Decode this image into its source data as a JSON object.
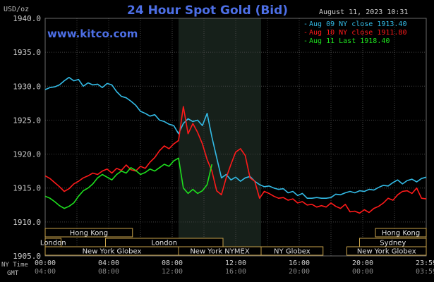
{
  "chart_data": {
    "type": "line",
    "title": "24 Hour Spot Gold (Bid)",
    "watermark": "www.kitco.com",
    "ylabel": "USD/oz",
    "timestamp": "August 11, 2023 10:31",
    "ylim": [
      1905,
      1940
    ],
    "xlim": [
      0,
      24
    ],
    "y_ticks": [
      "1940.0",
      "1935.0",
      "1930.0",
      "1925.0",
      "1920.0",
      "1915.0",
      "1910.0",
      "1905.0"
    ],
    "x_tick_values": [
      0,
      4,
      8,
      12,
      16,
      20,
      24
    ],
    "x_ticks_ny": [
      "00:00",
      "04:00",
      "08:00",
      "12:00",
      "16:00",
      "20:00",
      "23:59"
    ],
    "x_ticks_gmt": [
      "04:00",
      "08:00",
      "12:00",
      "16:00",
      "20:00",
      "00:00",
      "03:59"
    ],
    "row_label_ny": "NY Time",
    "row_label_gmt": "GMT",
    "grid": true,
    "legend_placement": "top-right",
    "highlight_range": [
      8.4,
      13.6
    ],
    "series": [
      {
        "name": "Aug 09 NY close 1913.40",
        "color": "#33bbe6",
        "x": [
          0,
          0.3,
          0.6,
          0.9,
          1.2,
          1.5,
          1.8,
          2.1,
          2.4,
          2.7,
          3.0,
          3.3,
          3.6,
          3.9,
          4.2,
          4.5,
          4.8,
          5.1,
          5.4,
          5.7,
          6.0,
          6.3,
          6.6,
          6.9,
          7.2,
          7.5,
          7.8,
          8.1,
          8.4,
          8.7,
          9.0,
          9.3,
          9.6,
          9.9,
          10.2,
          10.5,
          10.8,
          11.1,
          11.4,
          11.7,
          12.0,
          12.3,
          12.6,
          12.9,
          13.2,
          13.5,
          13.8,
          14.1,
          14.4,
          14.7,
          15.0,
          15.3,
          15.6,
          15.9,
          16.2,
          16.5,
          16.8,
          17.1,
          17.4,
          17.7,
          18.0,
          18.3,
          18.6,
          18.9,
          19.2,
          19.5,
          19.8,
          20.1,
          20.4,
          20.7,
          21.0,
          21.3,
          21.6,
          21.9,
          22.2,
          22.5,
          22.8,
          23.1,
          23.4,
          23.7,
          24.0
        ],
        "values": [
          1929.5,
          1929.8,
          1929.9,
          1930.2,
          1930.8,
          1931.3,
          1930.8,
          1931.0,
          1930.0,
          1930.5,
          1930.2,
          1930.3,
          1929.8,
          1930.4,
          1930.2,
          1929.2,
          1928.5,
          1928.3,
          1927.8,
          1927.2,
          1926.3,
          1926.0,
          1925.6,
          1925.8,
          1925.0,
          1924.8,
          1924.4,
          1924.2,
          1923.0,
          1924.5,
          1925.2,
          1924.8,
          1925.0,
          1924.2,
          1926.0,
          1922.5,
          1919.5,
          1916.5,
          1917.0,
          1916.2,
          1916.6,
          1916.0,
          1916.5,
          1916.7,
          1916.0,
          1915.5,
          1915.2,
          1915.3,
          1915.0,
          1914.8,
          1914.9,
          1914.3,
          1914.5,
          1913.9,
          1914.2,
          1913.5,
          1913.5,
          1913.6,
          1913.5,
          1913.5,
          1913.6,
          1914.1,
          1914.0,
          1914.3,
          1914.5,
          1914.3,
          1914.6,
          1914.5,
          1914.8,
          1914.7,
          1915.1,
          1915.4,
          1915.3,
          1915.8,
          1916.2,
          1915.6,
          1916.1,
          1916.3,
          1915.9,
          1916.4,
          1916.6
        ]
      },
      {
        "name": "Aug 10 NY close 1911.80",
        "color": "#ff1a1a",
        "x": [
          0,
          0.3,
          0.6,
          0.9,
          1.2,
          1.5,
          1.8,
          2.1,
          2.4,
          2.7,
          3.0,
          3.3,
          3.6,
          3.9,
          4.2,
          4.5,
          4.8,
          5.1,
          5.4,
          5.7,
          6.0,
          6.3,
          6.6,
          6.9,
          7.2,
          7.5,
          7.8,
          8.1,
          8.4,
          8.7,
          9.0,
          9.3,
          9.6,
          9.9,
          10.2,
          10.5,
          10.8,
          11.1,
          11.4,
          11.7,
          12.0,
          12.3,
          12.6,
          12.9,
          13.2,
          13.5,
          13.8,
          14.1,
          14.4,
          14.7,
          15.0,
          15.3,
          15.6,
          15.9,
          16.2,
          16.5,
          16.8,
          17.1,
          17.4,
          17.7,
          18.0,
          18.3,
          18.6,
          18.9,
          19.2,
          19.5,
          19.8,
          20.1,
          20.4,
          20.7,
          21.0,
          21.3,
          21.6,
          21.9,
          22.2,
          22.5,
          22.8,
          23.1,
          23.4,
          23.7,
          24.0
        ],
        "values": [
          1916.8,
          1916.4,
          1915.8,
          1915.2,
          1914.5,
          1914.9,
          1915.6,
          1916.0,
          1916.5,
          1916.8,
          1917.2,
          1917.0,
          1917.5,
          1917.8,
          1917.2,
          1917.9,
          1917.6,
          1918.4,
          1917.7,
          1917.5,
          1918.2,
          1917.9,
          1918.8,
          1919.5,
          1920.5,
          1921.2,
          1920.8,
          1921.5,
          1922.0,
          1927.0,
          1923.0,
          1924.5,
          1923.2,
          1921.5,
          1919.2,
          1917.5,
          1914.6,
          1914.0,
          1916.5,
          1918.5,
          1920.3,
          1920.8,
          1919.8,
          1916.5,
          1916.0,
          1913.5,
          1914.5,
          1914.2,
          1913.8,
          1913.5,
          1913.6,
          1913.2,
          1913.4,
          1912.8,
          1913.0,
          1912.5,
          1912.6,
          1912.2,
          1912.4,
          1912.2,
          1912.8,
          1912.3,
          1912.0,
          1912.6,
          1911.5,
          1911.6,
          1911.3,
          1911.8,
          1911.4,
          1912.0,
          1912.3,
          1912.8,
          1913.5,
          1913.2,
          1914.0,
          1914.5,
          1914.6,
          1914.2,
          1915.0,
          1913.5,
          1913.4
        ]
      },
      {
        "name": "Aug 11 Last 1918.40",
        "color": "#1ee01e",
        "x": [
          0,
          0.3,
          0.6,
          0.9,
          1.2,
          1.5,
          1.8,
          2.1,
          2.4,
          2.7,
          3.0,
          3.3,
          3.6,
          3.9,
          4.2,
          4.5,
          4.8,
          5.1,
          5.4,
          5.7,
          6.0,
          6.3,
          6.6,
          6.9,
          7.2,
          7.5,
          7.8,
          8.1,
          8.4,
          8.7,
          9.0,
          9.3,
          9.6,
          9.9,
          10.2,
          10.5
        ],
        "values": [
          1913.8,
          1913.5,
          1913.0,
          1912.4,
          1912.0,
          1912.3,
          1912.8,
          1913.8,
          1914.6,
          1915.0,
          1915.6,
          1916.5,
          1917.0,
          1916.6,
          1916.2,
          1917.0,
          1917.5,
          1917.2,
          1918.0,
          1917.6,
          1917.0,
          1917.3,
          1917.8,
          1917.5,
          1918.0,
          1918.5,
          1918.2,
          1919.0,
          1919.4,
          1915.0,
          1914.2,
          1914.8,
          1914.2,
          1914.6,
          1915.5,
          1918.5
        ]
      }
    ],
    "session_bars": [
      {
        "label": "Hong Kong",
        "start": 0,
        "end": 5.5,
        "row": 0
      },
      {
        "label": "London",
        "start": 0,
        "end": 1,
        "row": 1
      },
      {
        "label": "London",
        "start": 3.8,
        "end": 11.2,
        "row": 1
      },
      {
        "label": "New York Globex",
        "start": 0,
        "end": 8.4,
        "row": 2
      },
      {
        "label": "New York NYMEX",
        "start": 8.4,
        "end": 13.6,
        "row": 2
      },
      {
        "label": "NY Globex",
        "start": 13.6,
        "end": 17.5,
        "row": 2
      },
      {
        "label": "Hong Kong",
        "start": 20.8,
        "end": 24,
        "row": 0
      },
      {
        "label": "Sydney",
        "start": 19.8,
        "end": 24,
        "row": 1
      },
      {
        "label": "New York Globex",
        "start": 19.0,
        "end": 24,
        "row": 2
      }
    ]
  }
}
